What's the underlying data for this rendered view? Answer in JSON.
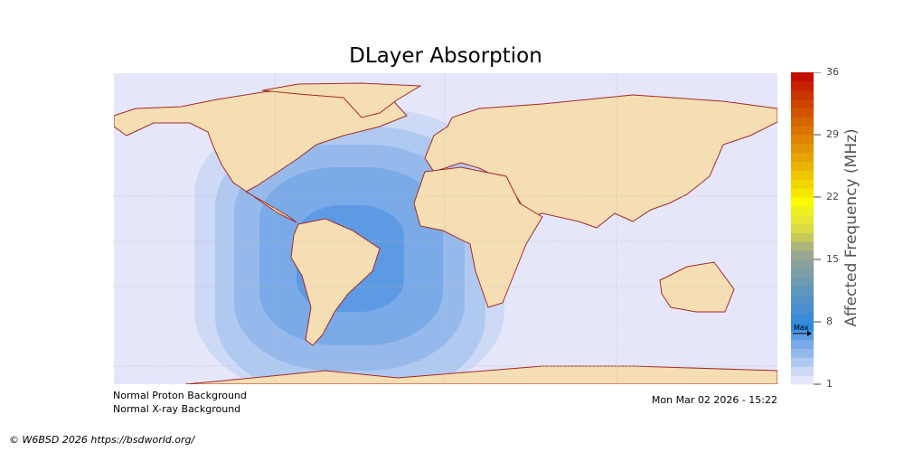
{
  "title": "DLayer Absorption",
  "colorbar": {
    "label": "Affected Frequency (MHz)",
    "min": 1,
    "max": 36,
    "ticks": [
      "36",
      "29",
      "22",
      "15",
      "8",
      "1"
    ],
    "marker_label": "Max",
    "marker_value": 6.7,
    "colors": [
      "#e6e6fa",
      "#cdd9f5",
      "#b0c9f0",
      "#96b9ec",
      "#7aaae7",
      "#5e9ae3",
      "#2f8ade",
      "#3b8cd8",
      "#4a8fcf",
      "#5593c6",
      "#6096bd",
      "#6e9ab3",
      "#7c9ea8",
      "#8aa29d",
      "#9aa790",
      "#acb47c",
      "#c7c95a",
      "#dadc45",
      "#e8e632",
      "#f0f01e",
      "#fafa00",
      "#f6e600",
      "#f2d600",
      "#eec600",
      "#eab400",
      "#e6a400",
      "#e29400",
      "#de8400",
      "#da7400",
      "#d66400",
      "#d25400",
      "#ce4400",
      "#ca3400",
      "#c62200",
      "#c21000"
    ]
  },
  "map": {
    "ocean_color": "#e6e6fa",
    "land_color": "#f5deb3",
    "coast_color": "#a52a2a",
    "absorption_levels_mhz": [
      2,
      3,
      4,
      5,
      6
    ]
  },
  "footer": {
    "proton": "Normal Proton Background",
    "xray": "Normal X-ray Background",
    "timestamp": "Mon Mar 02 2026 - 15:22",
    "copyright": "© W6BSD 2026 https://bsdworld.org/"
  }
}
